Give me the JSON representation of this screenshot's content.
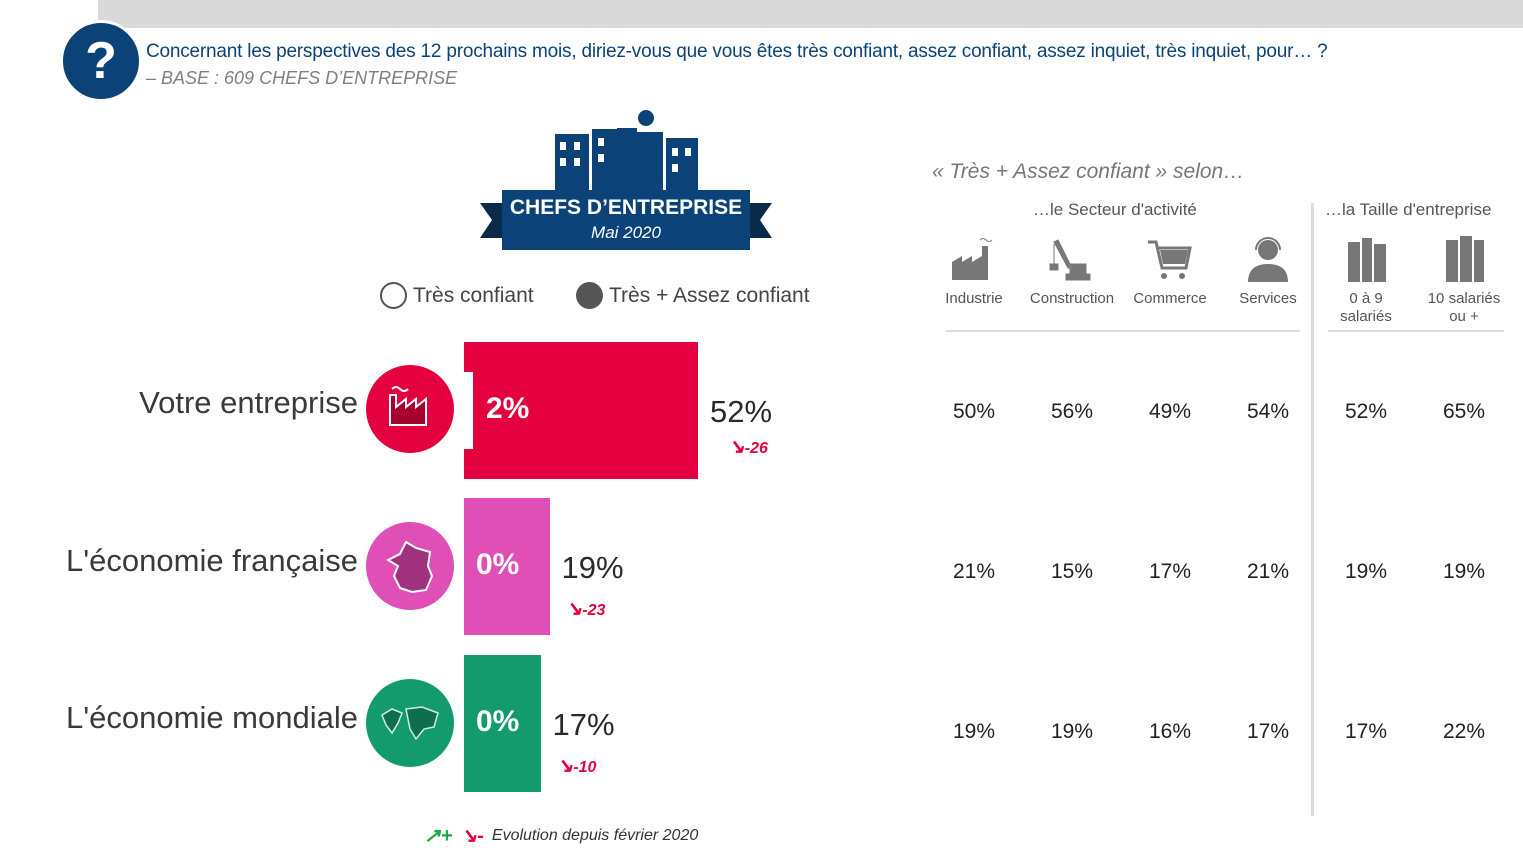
{
  "header": {
    "question_icon": "?",
    "question": "Concernant les perspectives des 12 prochains mois, diriez-vous que vous êtes très confiant, assez confiant, assez inquiet, très inquiet, pour… ?",
    "base": "– BASE : 609 CHEFS D’ENTREPRISE"
  },
  "badge": {
    "title": "CHEFS D’ENTREPRISE",
    "subtitle": "Mai 2020"
  },
  "chart_data": {
    "type": "bar",
    "orientation": "horizontal",
    "legend": [
      "Très confiant",
      "Très + Assez confiant"
    ],
    "categories": [
      "Votre entreprise",
      "L'économie française",
      "L'économie mondiale"
    ],
    "colors": [
      "#e4003e",
      "#df4fb6",
      "#139b6e"
    ],
    "series": [
      {
        "name": "Très confiant",
        "values": [
          2,
          0,
          0
        ],
        "labels": [
          "2%",
          "0%",
          "0%"
        ]
      },
      {
        "name": "Très + Assez confiant",
        "values": [
          52,
          19,
          17
        ],
        "labels": [
          "52%",
          "19%",
          "17%"
        ]
      }
    ],
    "evolution": [
      "-26",
      "-23",
      "-10"
    ],
    "evolution_note": "Evolution depuis février 2020",
    "evolution_legend": {
      "up": "+",
      "down": "-"
    },
    "breakdown": {
      "title": "« Très + Assez confiant » selon…",
      "groups": [
        {
          "label": "…le Secteur d'activité",
          "columns": [
            {
              "label": "Industrie",
              "icon": "factory-icon"
            },
            {
              "label": "Construction",
              "icon": "crane-icon"
            },
            {
              "label": "Commerce",
              "icon": "cart-icon"
            },
            {
              "label": "Services",
              "icon": "headset-person-icon"
            }
          ]
        },
        {
          "label": "…la Taille d'entreprise",
          "columns": [
            {
              "label": "0 à 9 salariés",
              "icon": "building-small-icon"
            },
            {
              "label": "10 salariés ou +",
              "icon": "building-large-icon"
            }
          ]
        }
      ],
      "rows": [
        [
          "50%",
          "56%",
          "49%",
          "54%",
          "52%",
          "65%"
        ],
        [
          "21%",
          "15%",
          "17%",
          "21%",
          "19%",
          "19%"
        ],
        [
          "19%",
          "19%",
          "16%",
          "17%",
          "17%",
          "22%"
        ]
      ]
    }
  }
}
